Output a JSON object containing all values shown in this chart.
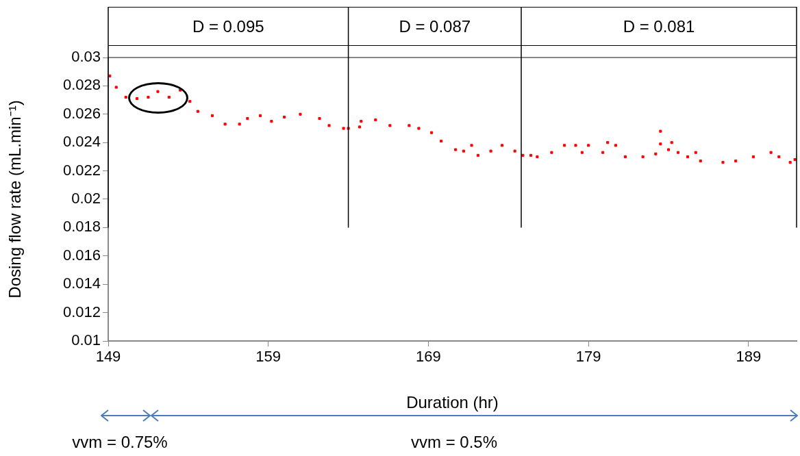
{
  "chart_data": {
    "type": "scatter",
    "xlabel": "Duration (hr)",
    "ylabel": "Dosing flow rate (mL.min⁻¹)",
    "xlim": [
      149,
      192
    ],
    "xticks": [
      149,
      159,
      169,
      179,
      189
    ],
    "ylim": [
      0.01,
      0.03
    ],
    "yticks": [
      0.01,
      0.012,
      0.014,
      0.016,
      0.018,
      0.02,
      0.022,
      0.024,
      0.026,
      0.028,
      0.03
    ],
    "grid": false,
    "legend": false,
    "marker": "square",
    "series": [
      {
        "color": "#ff0000",
        "x": [
          149.1,
          149.5,
          150.1,
          150.8,
          151.5,
          152.1,
          152.8,
          153.5,
          154.1,
          154.6,
          155.5,
          156.3,
          157.2,
          157.7,
          158.5,
          159.2,
          160.0,
          161.0,
          162.2,
          162.8,
          163.7,
          164.0,
          164.7,
          164.8,
          165.7,
          166.6,
          167.8,
          168.4,
          169.2,
          169.8,
          170.7,
          171.2,
          171.7,
          172.1,
          172.9,
          173.6,
          174.4,
          174.9,
          175.4,
          175.8,
          176.7,
          177.5,
          178.2,
          178.6,
          179.0,
          179.9,
          180.2,
          180.7,
          181.3,
          182.4,
          183.2,
          183.5,
          183.5,
          184.0,
          184.2,
          184.6,
          185.2,
          185.7,
          186.0,
          187.4,
          188.2,
          189.3,
          190.4,
          190.9,
          191.6,
          191.9
        ],
        "values": [
          0.0287,
          0.0279,
          0.0272,
          0.0271,
          0.0272,
          0.0276,
          0.0272,
          0.0277,
          0.0269,
          0.0262,
          0.0259,
          0.0253,
          0.0253,
          0.0257,
          0.0259,
          0.0255,
          0.0258,
          0.026,
          0.0257,
          0.0252,
          0.025,
          0.025,
          0.0251,
          0.0255,
          0.0256,
          0.0252,
          0.0252,
          0.025,
          0.0247,
          0.0241,
          0.0235,
          0.0234,
          0.0238,
          0.0231,
          0.0234,
          0.0238,
          0.0234,
          0.0231,
          0.0231,
          0.023,
          0.0233,
          0.0238,
          0.0238,
          0.0233,
          0.0238,
          0.0233,
          0.024,
          0.0238,
          0.023,
          0.023,
          0.0232,
          0.0248,
          0.0239,
          0.0235,
          0.024,
          0.0233,
          0.023,
          0.0233,
          0.0227,
          0.0226,
          0.0227,
          0.023,
          0.0233,
          0.023,
          0.0226,
          0.0228
        ]
      }
    ],
    "ref_lines": [
      {
        "axis": "x",
        "value": 149,
        "color": "#000000"
      },
      {
        "axis": "x",
        "value": 164,
        "color": "#000000"
      },
      {
        "axis": "x",
        "value": 174.8,
        "color": "#000000"
      },
      {
        "axis": "x",
        "value": 192,
        "color": "#000000"
      }
    ],
    "annotations": [
      "D = 0.095",
      "D = 0.087",
      "D = 0.081",
      "vvm = 0.75%",
      "vvm = 0.5%"
    ]
  }
}
